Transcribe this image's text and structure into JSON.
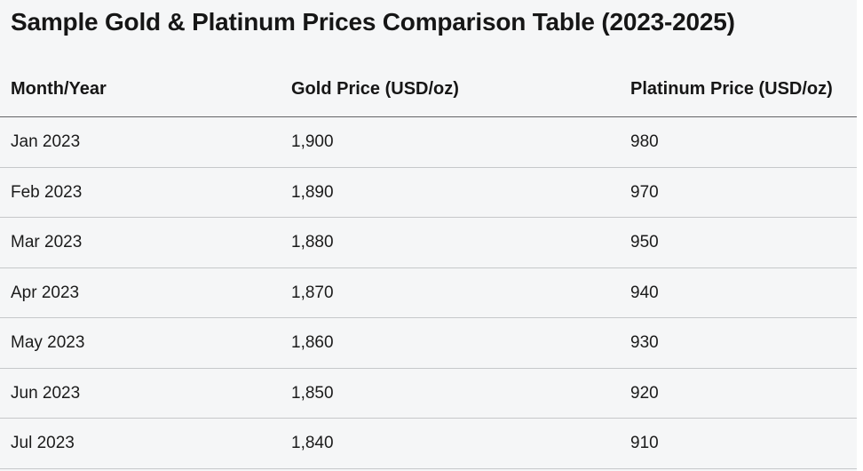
{
  "title": "Sample Gold & Platinum Prices Comparison Table (2023-2025)",
  "chart_data": {
    "type": "table",
    "title": "Sample Gold & Platinum Prices Comparison Table (2023-2025)",
    "columns": [
      "Month/Year",
      "Gold Price (USD/oz)",
      "Platinum Price (USD/oz)"
    ],
    "rows": [
      [
        "Jan 2023",
        "1,900",
        "980"
      ],
      [
        "Feb 2023",
        "1,890",
        "970"
      ],
      [
        "Mar 2023",
        "1,880",
        "950"
      ],
      [
        "Apr 2023",
        "1,870",
        "940"
      ],
      [
        "May 2023",
        "1,860",
        "930"
      ],
      [
        "Jun 2023",
        "1,850",
        "920"
      ],
      [
        "Jul 2023",
        "1,840",
        "910"
      ]
    ],
    "series": [
      {
        "name": "Gold Price (USD/oz)",
        "values": [
          1900,
          1890,
          1880,
          1870,
          1860,
          1850,
          1840
        ]
      },
      {
        "name": "Platinum Price (USD/oz)",
        "values": [
          980,
          970,
          950,
          940,
          930,
          920,
          910
        ]
      }
    ],
    "categories": [
      "Jan 2023",
      "Feb 2023",
      "Mar 2023",
      "Apr 2023",
      "May 2023",
      "Jun 2023",
      "Jul 2023"
    ]
  },
  "colors": {
    "surface_background": "#f5f6f7",
    "text": "#161616",
    "header_separator": "#636567",
    "row_separator": "#c6c8ca"
  }
}
